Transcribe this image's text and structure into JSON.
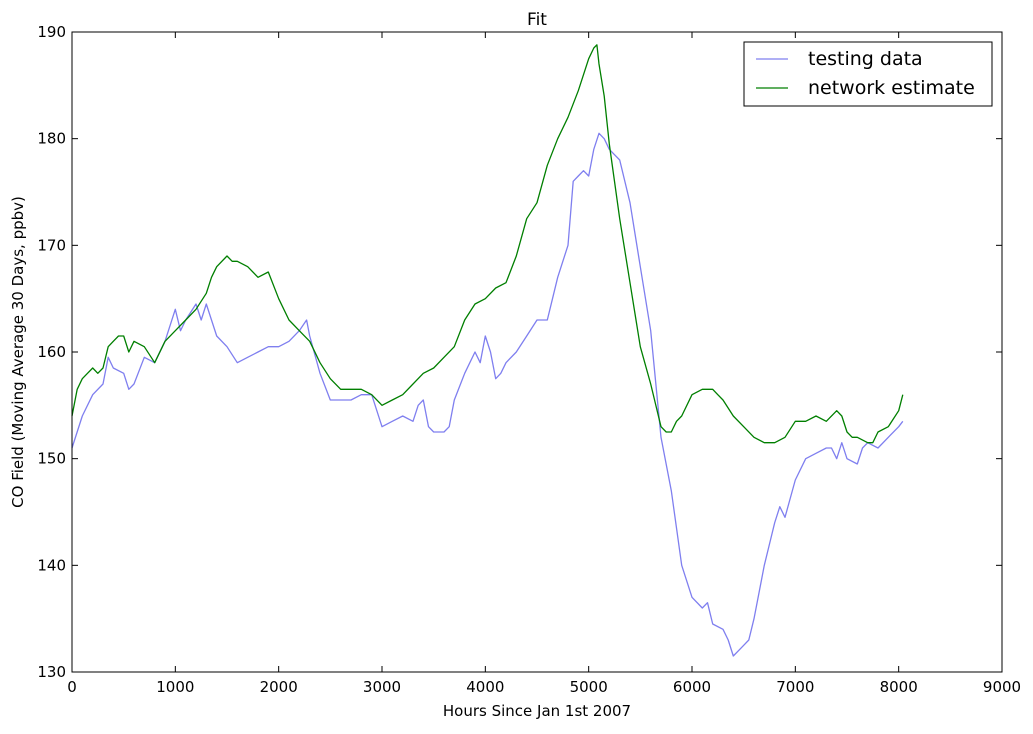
{
  "chart_data": {
    "type": "line",
    "title": "Fit",
    "xlabel": "Hours Since Jan 1st 2007",
    "ylabel": "CO Field (Moving Average 30 Days, ppbv)",
    "xlim": [
      0,
      9000
    ],
    "ylim": [
      130,
      190
    ],
    "xticks": [
      0,
      1000,
      2000,
      3000,
      4000,
      5000,
      6000,
      7000,
      8000,
      9000
    ],
    "yticks": [
      130,
      140,
      150,
      160,
      170,
      180,
      190
    ],
    "grid": false,
    "legend_position": "top-right",
    "series": [
      {
        "name": "testing data",
        "color": "#7f7fef",
        "x": [
          0,
          100,
          200,
          300,
          350,
          400,
          500,
          550,
          600,
          700,
          800,
          900,
          1000,
          1050,
          1100,
          1200,
          1250,
          1300,
          1350,
          1400,
          1500,
          1600,
          1700,
          1800,
          1900,
          2000,
          2100,
          2200,
          2270,
          2300,
          2400,
          2500,
          2600,
          2700,
          2800,
          2900,
          3000,
          3100,
          3200,
          3300,
          3350,
          3400,
          3450,
          3500,
          3600,
          3650,
          3700,
          3800,
          3900,
          3950,
          4000,
          4050,
          4100,
          4150,
          4200,
          4300,
          4400,
          4500,
          4600,
          4650,
          4700,
          4800,
          4850,
          4900,
          4950,
          5000,
          5050,
          5100,
          5150,
          5200,
          5250,
          5300,
          5400,
          5500,
          5600,
          5700,
          5800,
          5900,
          6000,
          6100,
          6150,
          6200,
          6300,
          6350,
          6400,
          6450,
          6500,
          6550,
          6600,
          6700,
          6750,
          6800,
          6850,
          6900,
          7000,
          7100,
          7200,
          7300,
          7350,
          7400,
          7450,
          7500,
          7600,
          7650,
          7700,
          7800,
          7900,
          8000,
          8040
        ],
        "y": [
          151,
          154,
          156,
          157,
          159.5,
          158.5,
          158,
          156.5,
          157,
          159.5,
          159,
          161,
          164,
          162,
          163,
          164.5,
          163,
          164.5,
          163,
          161.5,
          160.5,
          159,
          159.5,
          160,
          160.5,
          160.5,
          161,
          162,
          163,
          161.5,
          158,
          155.5,
          155.5,
          155.5,
          156,
          156,
          153,
          153.5,
          154,
          153.5,
          155,
          155.5,
          153,
          152.5,
          152.5,
          153,
          155.5,
          158,
          160,
          159,
          161.5,
          160,
          157.5,
          158,
          159,
          160,
          161.5,
          163,
          163,
          165,
          167,
          170,
          176,
          176.5,
          177,
          176.5,
          179,
          180.5,
          180,
          179,
          178.5,
          178,
          174,
          168,
          162,
          152,
          147,
          140,
          137,
          136,
          136.5,
          134.5,
          134,
          133,
          131.5,
          132,
          132.5,
          133,
          135,
          140,
          142,
          144,
          145.5,
          144.5,
          148,
          150,
          150.5,
          151,
          151,
          150,
          151.5,
          150,
          149.5,
          151,
          151.5,
          151,
          152,
          153,
          153.5
        ]
      },
      {
        "name": "network estimate",
        "color": "#007f00",
        "x": [
          0,
          50,
          100,
          150,
          200,
          250,
          300,
          350,
          400,
          450,
          500,
          550,
          600,
          700,
          800,
          900,
          1000,
          1100,
          1200,
          1300,
          1350,
          1400,
          1500,
          1550,
          1600,
          1700,
          1800,
          1900,
          2000,
          2100,
          2200,
          2300,
          2400,
          2500,
          2600,
          2700,
          2800,
          2900,
          3000,
          3100,
          3200,
          3300,
          3400,
          3500,
          3600,
          3700,
          3800,
          3900,
          4000,
          4100,
          4200,
          4300,
          4400,
          4500,
          4600,
          4700,
          4800,
          4900,
          5000,
          5050,
          5080,
          5100,
          5150,
          5200,
          5300,
          5400,
          5500,
          5600,
          5700,
          5750,
          5800,
          5850,
          5900,
          6000,
          6100,
          6200,
          6250,
          6300,
          6400,
          6500,
          6600,
          6700,
          6800,
          6900,
          7000,
          7100,
          7200,
          7300,
          7400,
          7450,
          7500,
          7550,
          7600,
          7700,
          7750,
          7800,
          7900,
          8000,
          8040
        ],
        "y": [
          154,
          156.5,
          157.5,
          158,
          158.5,
          158,
          158.5,
          160.5,
          161,
          161.5,
          161.5,
          160,
          161,
          160.5,
          159,
          161,
          162,
          163,
          164,
          165.5,
          167,
          168,
          169,
          168.5,
          168.5,
          168,
          167,
          167.5,
          165,
          163,
          162,
          161,
          159,
          157.5,
          156.5,
          156.5,
          156.5,
          156,
          155,
          155.5,
          156,
          157,
          158,
          158.5,
          159.5,
          160.5,
          163,
          164.5,
          165,
          166,
          166.5,
          169,
          172.5,
          174,
          177.5,
          180,
          182,
          184.5,
          187.5,
          188.5,
          188.8,
          187,
          184,
          179.5,
          172.5,
          166.5,
          160.5,
          157,
          153,
          152.5,
          152.5,
          153.5,
          154,
          156,
          156.5,
          156.5,
          156,
          155.5,
          154,
          153,
          152,
          151.5,
          151.5,
          152,
          153.5,
          153.5,
          154,
          153.5,
          154.5,
          154,
          152.5,
          152,
          152,
          151.5,
          151.5,
          152.5,
          153,
          154.5,
          156
        ]
      }
    ]
  }
}
